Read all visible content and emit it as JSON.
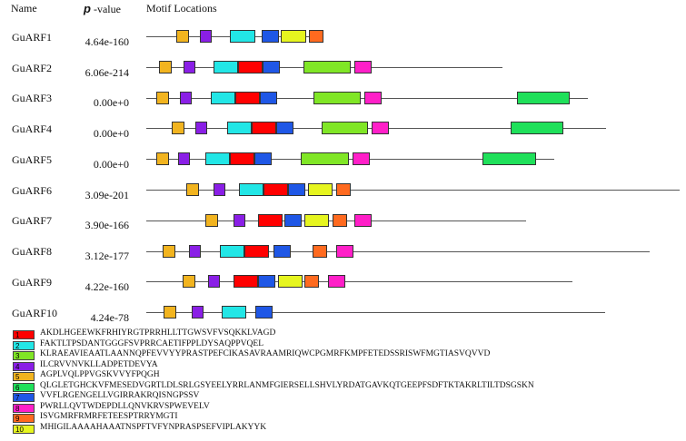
{
  "header": {
    "name_label": "Name",
    "p_label": "p",
    "pvalue_suffix": " -value",
    "locations_label": "Motif Locations"
  },
  "motif_colors": {
    "1": "#ff0000",
    "2": "#22e6e6",
    "3": "#80e626",
    "4": "#8a1fe6",
    "5": "#f2b41f",
    "6": "#1fe05a",
    "7": "#1f57e6",
    "8": "#ff1fc8",
    "9": "#ff6a1f",
    "10": "#e6f51f"
  },
  "rows": [
    {
      "name": "GuARF1",
      "pvalue": "4.64e-160",
      "motifs": [
        "5",
        "4",
        "2",
        "7",
        "10",
        "9"
      ]
    },
    {
      "name": "GuARF2",
      "pvalue": "6.06e-214",
      "motifs": [
        "5",
        "4",
        "2",
        "1",
        "7",
        "3",
        "8"
      ]
    },
    {
      "name": "GuARF3",
      "pvalue": "0.00e+0",
      "motifs": [
        "5",
        "4",
        "2",
        "1",
        "7",
        "3",
        "8",
        "6"
      ]
    },
    {
      "name": "GuARF4",
      "pvalue": "0.00e+0",
      "motifs": [
        "5",
        "4",
        "2",
        "1",
        "7",
        "3",
        "8",
        "6"
      ]
    },
    {
      "name": "GuARF5",
      "pvalue": "0.00e+0",
      "motifs": [
        "5",
        "4",
        "2",
        "1",
        "7",
        "3",
        "8",
        "6"
      ]
    },
    {
      "name": "GuARF6",
      "pvalue": "3.09e-201",
      "motifs": [
        "5",
        "4",
        "2",
        "1",
        "7",
        "10",
        "9"
      ]
    },
    {
      "name": "GuARF7",
      "pvalue": "3.90e-166",
      "motifs": [
        "5",
        "4",
        "1",
        "7",
        "10",
        "9",
        "8"
      ]
    },
    {
      "name": "GuARF8",
      "pvalue": "3.12e-177",
      "motifs": [
        "5",
        "4",
        "2",
        "1",
        "7",
        "9",
        "8"
      ]
    },
    {
      "name": "GuARF9",
      "pvalue": "4.22e-160",
      "motifs": [
        "5",
        "4",
        "1",
        "7",
        "10",
        "9",
        "8"
      ]
    },
    {
      "name": "GuARF10",
      "pvalue": "4.24e-78",
      "motifs": [
        "5",
        "4",
        "2",
        "7"
      ]
    }
  ],
  "legend": [
    {
      "num": "1",
      "seq": "AKDLHGEEWKFRHIYRGTPRRHLLTTGWSVFVSQKKLVAGD"
    },
    {
      "num": "2",
      "seq": "FAKTLTPSDANTGGGFSVPRRCAETIFPPLDYSAQPPVQEL"
    },
    {
      "num": "3",
      "seq": "KLRAEAVIEAATLAANNQPFEVVYYPRASTPEFCIKASAVRAAMRIQWCPGMRFKMPFETEDSSRISWFMGTIASVQVVD"
    },
    {
      "num": "4",
      "seq": "ILCRVVNVKLLADPETDEVYA"
    },
    {
      "num": "5",
      "seq": "AGPLVQLPPVGSKVVYFPQGH"
    },
    {
      "num": "6",
      "seq": "QLGLETGHCKVFMESEDVGRTLDLSRLGSYEELYRRLANMFGIERSELLSHVLYRDATGAVKQTGEEPFSDFTKTAKRLTILTDSGSKN"
    },
    {
      "num": "7",
      "seq": "VVFLRGENGELLVGIRRAKRQISNGPSSV"
    },
    {
      "num": "8",
      "seq": "PWRLLQVTWDEPDLLQNVKRVSPWEVELV"
    },
    {
      "num": "9",
      "seq": "ISVGMRFRMRFETEESPTRRYMGTI"
    },
    {
      "num": "10",
      "seq": "MHIGILAAAAHAAATNSPFTVFYNPRASPSEFVIPLAKYYK"
    }
  ]
}
